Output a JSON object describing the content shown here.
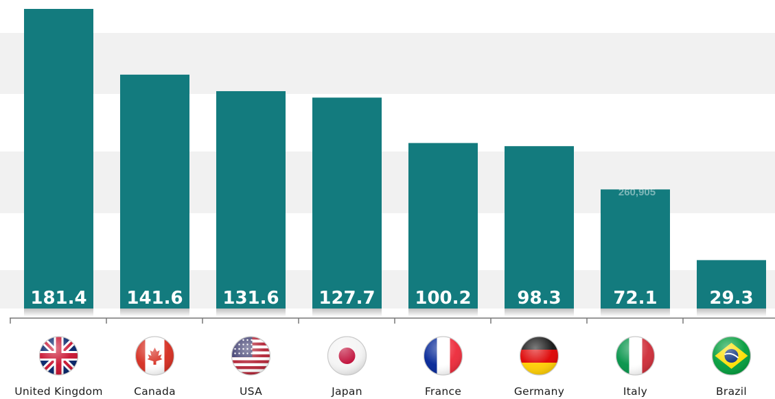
{
  "chart_data": {
    "type": "bar",
    "categories": [
      "United Kingdom",
      "Canada",
      "USA",
      "Japan",
      "France",
      "Germany",
      "Italy",
      "Brazil"
    ],
    "values": [
      181.4,
      141.6,
      131.6,
      127.7,
      100.2,
      98.3,
      72.1,
      29.3
    ],
    "value_labels": [
      "181.4",
      "141.6",
      "131.6",
      "127.7",
      "100.2",
      "98.3",
      "72.1",
      "29.3"
    ],
    "flags": [
      "uk-flag-icon",
      "canada-flag-icon",
      "usa-flag-icon",
      "japan-flag-icon",
      "france-flag-icon",
      "germany-flag-icon",
      "italy-flag-icon",
      "brazil-flag-icon"
    ],
    "watermark": "260,905",
    "title": "",
    "xlabel": "",
    "ylabel": "",
    "ylim": [
      0,
      190
    ],
    "grid": "alternating horizontal bands",
    "bar_color": "#137b7e",
    "band_color": "#f1f1f1"
  }
}
